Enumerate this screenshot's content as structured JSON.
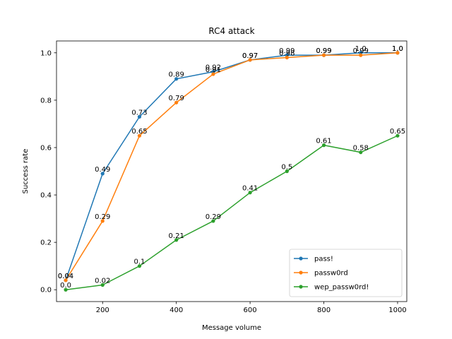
{
  "chart_data": {
    "type": "line",
    "title": "RC4 attack",
    "xlabel": "Message volume",
    "ylabel": "Success rate",
    "xlim": [
      75,
      1025
    ],
    "ylim": [
      -0.05,
      1.05
    ],
    "xticks": [
      200,
      400,
      600,
      800,
      1000
    ],
    "yticks": [
      0.0,
      0.2,
      0.4,
      0.6,
      0.8,
      1.0
    ],
    "xtick_labels": [
      "200",
      "400",
      "600",
      "800",
      "1000"
    ],
    "ytick_labels": [
      "0.0",
      "0.2",
      "0.4",
      "0.6",
      "0.8",
      "1.0"
    ],
    "grid": false,
    "legend_position": "lower-right",
    "series": [
      {
        "name": "pass!",
        "color": "#1f77b4",
        "x": [
          100,
          200,
          300,
          400,
          500,
          600,
          700,
          800,
          900,
          1000
        ],
        "y": [
          0.04,
          0.49,
          0.73,
          0.89,
          0.92,
          0.97,
          0.99,
          0.99,
          1.0,
          1.0
        ],
        "labels": [
          "0.04",
          "0.49",
          "0.73",
          "0.89",
          "0.92",
          "0.97",
          "0.99",
          "0.99",
          "1.0",
          "1.0"
        ]
      },
      {
        "name": "passw0rd",
        "color": "#ff7f0e",
        "x": [
          100,
          200,
          300,
          400,
          500,
          600,
          700,
          800,
          900,
          1000
        ],
        "y": [
          0.04,
          0.29,
          0.65,
          0.79,
          0.91,
          0.97,
          0.98,
          0.99,
          0.99,
          1.0
        ],
        "labels": [
          "0.04",
          "0.29",
          "0.65",
          "0.79",
          "0.91",
          "0.97",
          "0.98",
          "0.99",
          "0.99",
          "1.0"
        ]
      },
      {
        "name": "wep_passw0rd!",
        "color": "#2ca02c",
        "x": [
          100,
          200,
          300,
          400,
          500,
          600,
          700,
          800,
          900,
          1000
        ],
        "y": [
          0.0,
          0.02,
          0.1,
          0.21,
          0.29,
          0.41,
          0.5,
          0.61,
          0.58,
          0.65
        ],
        "labels": [
          "0.0",
          "0.02",
          "0.1",
          "0.21",
          "0.29",
          "0.41",
          "0.5",
          "0.61",
          "0.58",
          "0.65"
        ]
      }
    ]
  }
}
